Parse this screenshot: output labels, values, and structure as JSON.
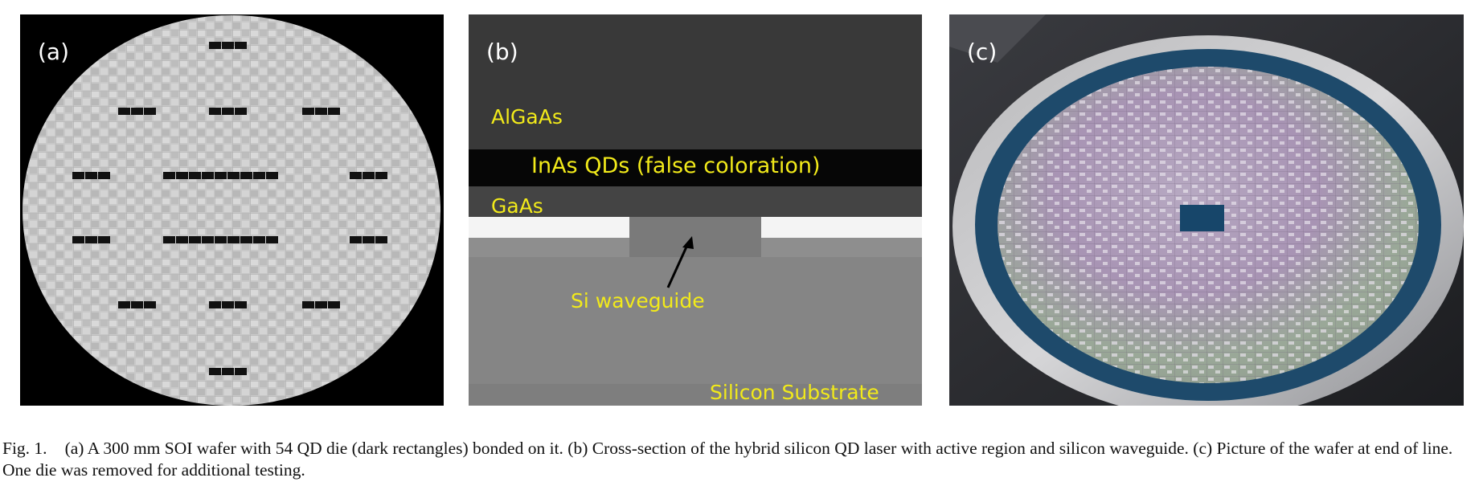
{
  "figure": {
    "panels": [
      {
        "id": "a",
        "label": "(a)"
      },
      {
        "id": "b",
        "label": "(b)",
        "annotations": {
          "algaas": "AlGaAs",
          "inas": "InAs QDs (false coloration)",
          "gaas": "GaAs",
          "waveguide": "Si waveguide",
          "substrate": "Silicon Substrate"
        }
      },
      {
        "id": "c",
        "label": "(c)"
      }
    ],
    "caption": {
      "number": "Fig. 1.",
      "text": "(a) A 300 mm SOI wafer with 54 QD die (dark rectangles) bonded on it. (b) Cross-section of the hybrid silicon QD laser with active region and silicon waveguide. (c) Picture of the wafer at end of line. One die was removed for additional testing."
    }
  },
  "colors": {
    "annotation_yellow": "#f2ea1a",
    "wafer_gray": "#c9c9c9",
    "die_dark": "#111111",
    "blue_ring": "#1e4a6b"
  }
}
